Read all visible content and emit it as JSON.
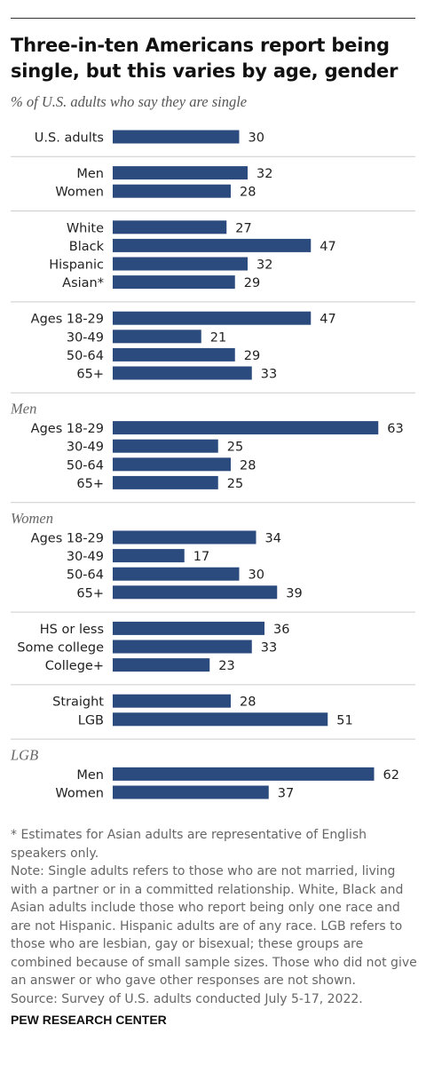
{
  "title": "Three-in-ten Americans report being single, but this varies by age, gender",
  "subtitle": "% of U.S. adults who say they are single",
  "notes": {
    "asterisk": "* Estimates for Asian adults are representative of English speakers only.",
    "note": "Note: Single adults refers to those who are not married, living with a partner or in a committed relationship. White, Black and Asian adults include those who report being only one race and are not Hispanic. Hispanic adults are of any race. LGB refers to those who are lesbian, gay or bisexual; these groups are combined because of small sample sizes. Those who did not give an answer or who gave other responses are not shown.",
    "source": "Source: Survey of U.S. adults conducted July 5-17, 2022."
  },
  "brand": "PEW RESEARCH CENTER",
  "colors": {
    "bar": "#2b4a7e",
    "divider": "#cccccc",
    "group_header": "#666666"
  },
  "chart_data": {
    "type": "bar",
    "orientation": "horizontal",
    "title": "Three-in-ten Americans report being single, but this varies by age, gender",
    "subtitle": "% of U.S. adults who say they are single",
    "xlim": [
      0,
      70
    ],
    "groups": [
      {
        "header": "",
        "rows": [
          {
            "label": "U.S. adults",
            "value": 30
          }
        ]
      },
      {
        "header": "",
        "rows": [
          {
            "label": "Men",
            "value": 32
          },
          {
            "label": "Women",
            "value": 28
          }
        ]
      },
      {
        "header": "",
        "rows": [
          {
            "label": "White",
            "value": 27
          },
          {
            "label": "Black",
            "value": 47
          },
          {
            "label": "Hispanic",
            "value": 32
          },
          {
            "label": "Asian*",
            "value": 29
          }
        ]
      },
      {
        "header": "",
        "rows": [
          {
            "label": "Ages 18-29",
            "value": 47
          },
          {
            "label": "30-49",
            "value": 21
          },
          {
            "label": "50-64",
            "value": 29
          },
          {
            "label": "65+",
            "value": 33
          }
        ]
      },
      {
        "header": "Men",
        "rows": [
          {
            "label": "Ages 18-29",
            "value": 63
          },
          {
            "label": "30-49",
            "value": 25
          },
          {
            "label": "50-64",
            "value": 28
          },
          {
            "label": "65+",
            "value": 25
          }
        ]
      },
      {
        "header": "Women",
        "rows": [
          {
            "label": "Ages 18-29",
            "value": 34
          },
          {
            "label": "30-49",
            "value": 17
          },
          {
            "label": "50-64",
            "value": 30
          },
          {
            "label": "65+",
            "value": 39
          }
        ]
      },
      {
        "header": "",
        "rows": [
          {
            "label": "HS or less",
            "value": 36
          },
          {
            "label": "Some college",
            "value": 33
          },
          {
            "label": "College+",
            "value": 23
          }
        ]
      },
      {
        "header": "",
        "rows": [
          {
            "label": "Straight",
            "value": 28
          },
          {
            "label": "LGB",
            "value": 51
          }
        ]
      },
      {
        "header": "LGB",
        "rows": [
          {
            "label": "Men",
            "value": 62
          },
          {
            "label": "Women",
            "value": 37
          }
        ]
      }
    ]
  }
}
